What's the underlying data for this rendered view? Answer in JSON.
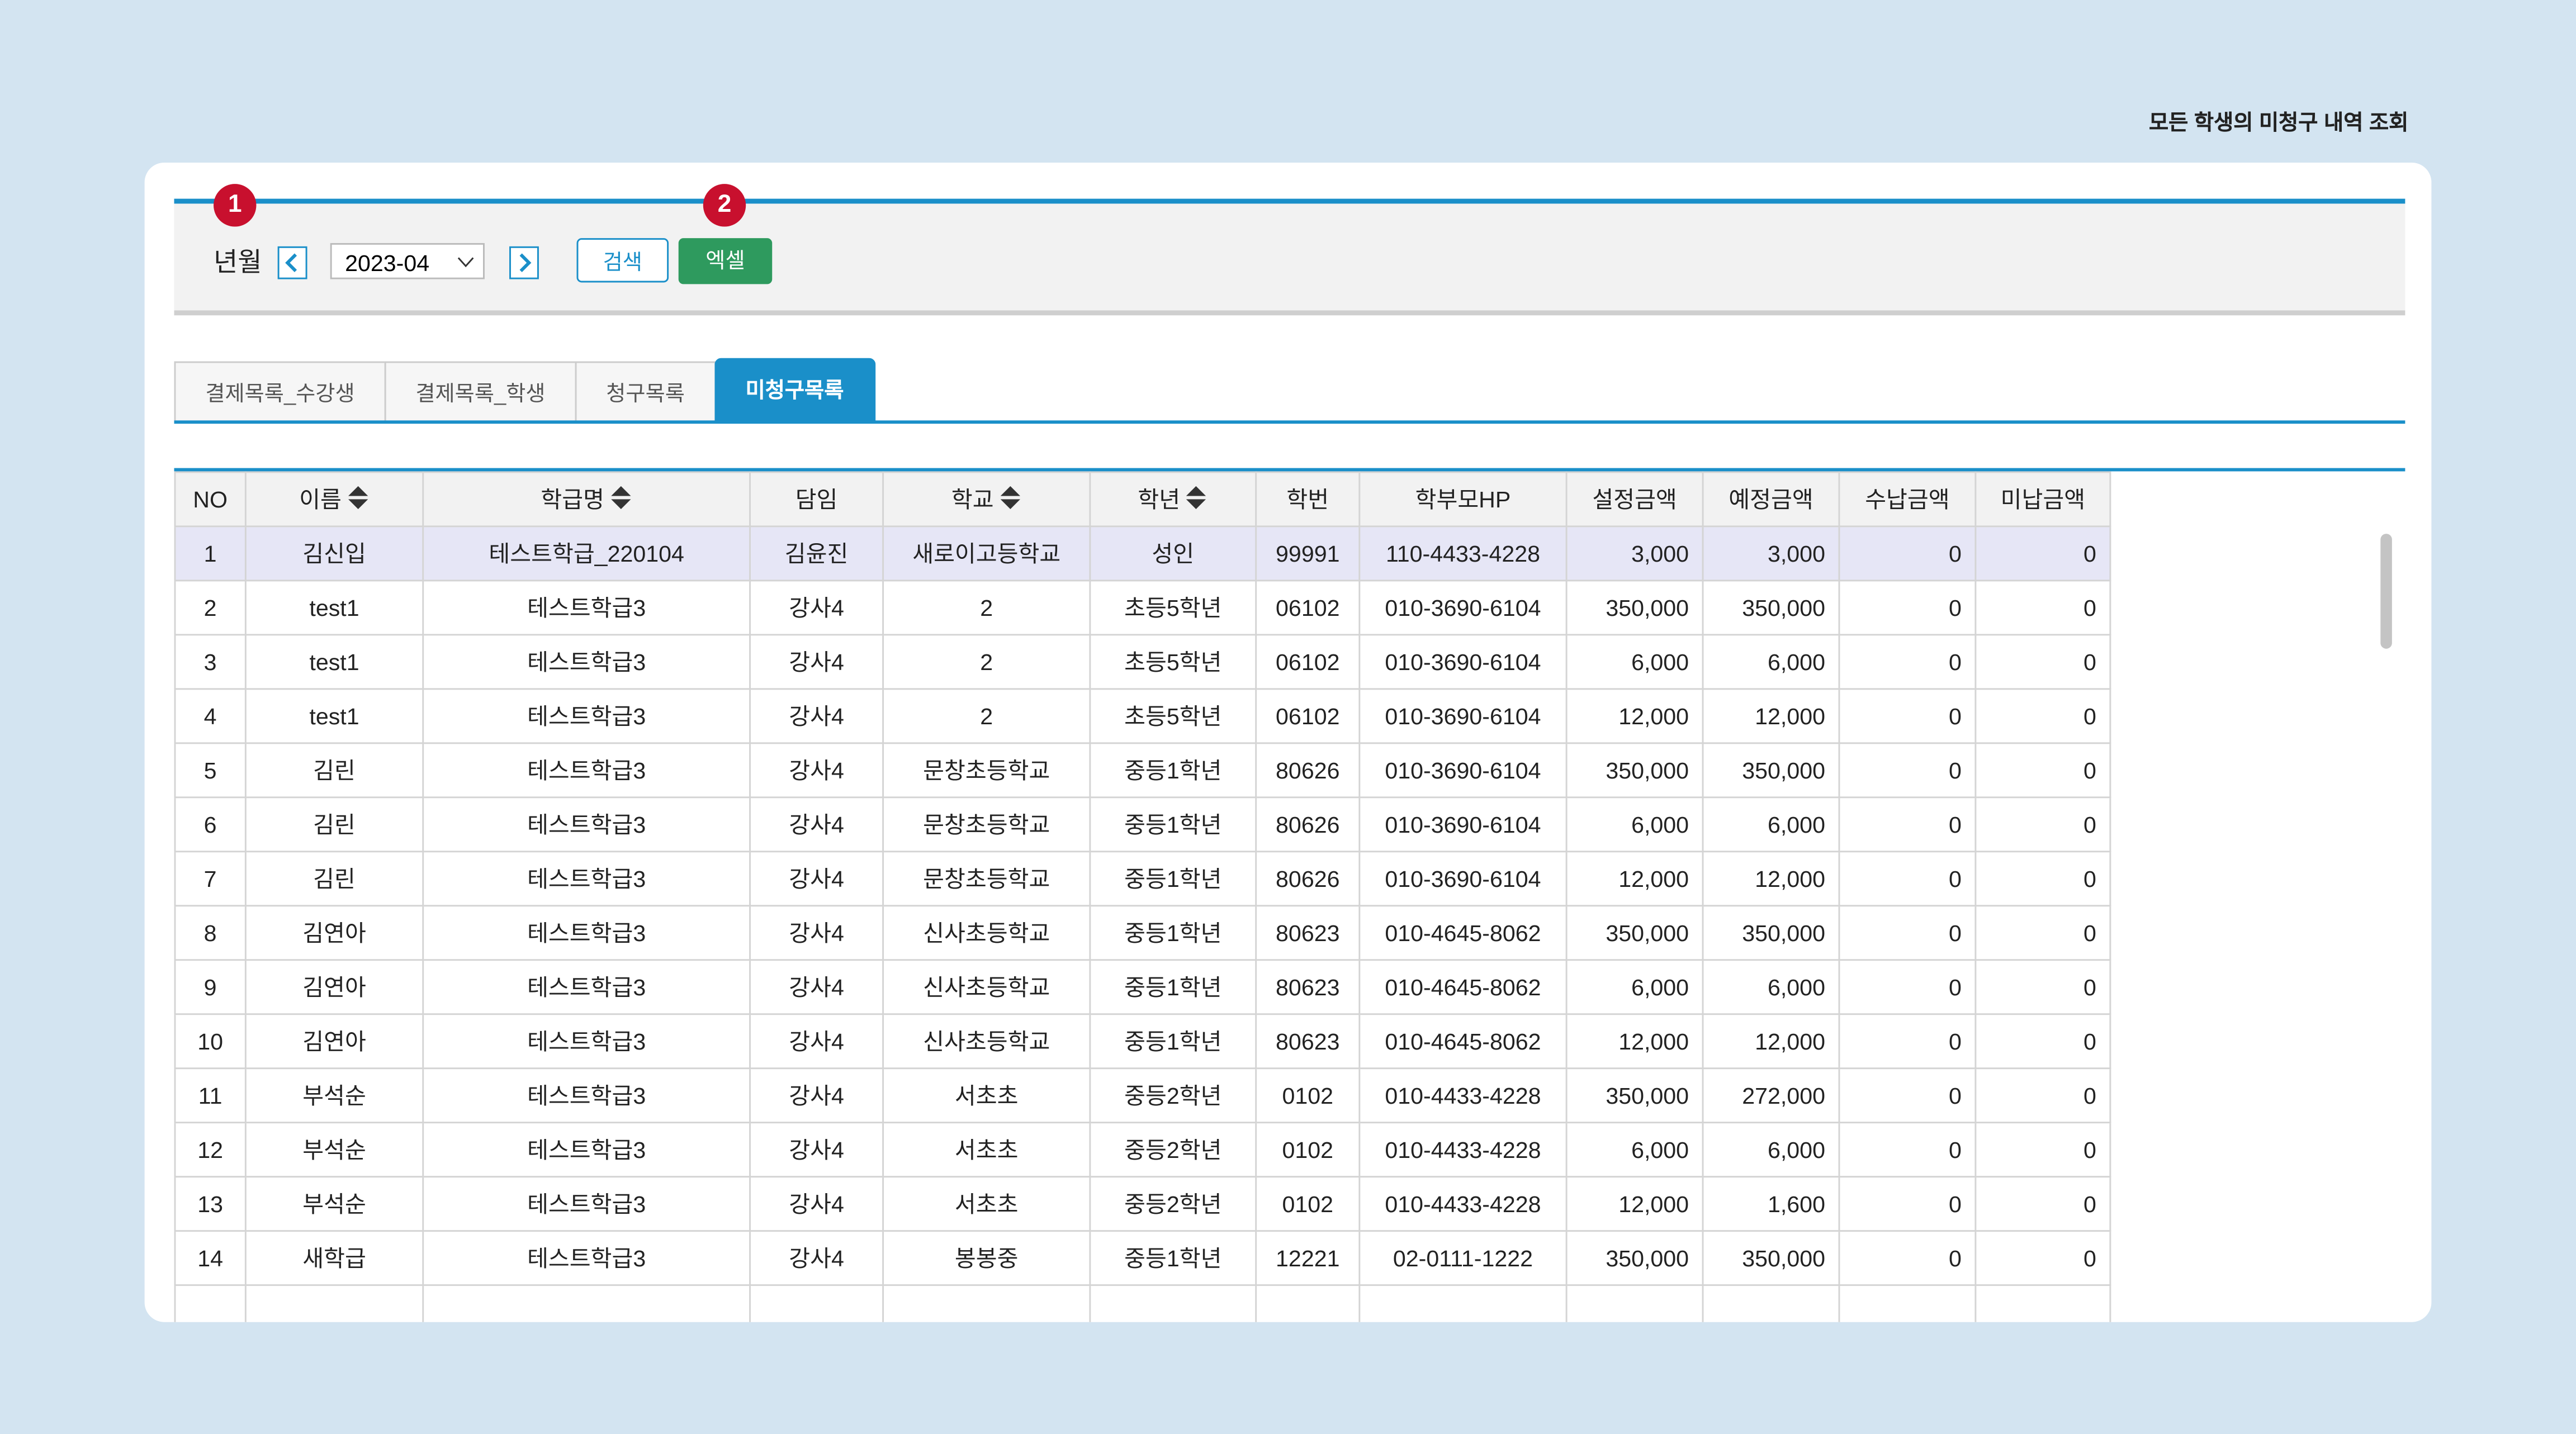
{
  "header": {
    "title": "모든 학생의 미청구 내역 조회"
  },
  "markers": [
    "1",
    "2"
  ],
  "filter": {
    "label": "년월",
    "month": "2023-04",
    "search": "검색",
    "excel": "엑셀"
  },
  "tabs": {
    "items": [
      "결제목록_수강생",
      "결제목록_학생",
      "청구목록",
      "미청구목록"
    ],
    "active": 3
  },
  "table": {
    "columns": [
      {
        "label": "NO",
        "sortable": false
      },
      {
        "label": "이름",
        "sortable": true
      },
      {
        "label": "학급명",
        "sortable": true
      },
      {
        "label": "담임",
        "sortable": false
      },
      {
        "label": "학교",
        "sortable": true
      },
      {
        "label": "학년",
        "sortable": true
      },
      {
        "label": "학번",
        "sortable": false
      },
      {
        "label": "학부모HP",
        "sortable": false
      },
      {
        "label": "설정금액",
        "sortable": false
      },
      {
        "label": "예정금액",
        "sortable": false
      },
      {
        "label": "수납금액",
        "sortable": false
      },
      {
        "label": "미납금액",
        "sortable": false
      }
    ],
    "selected_row": 0,
    "rows": [
      [
        "1",
        "김신입",
        "테스트학급_220104",
        "김윤진",
        "새로이고등학교",
        "성인",
        "99991",
        "110-4433-4228",
        "3,000",
        "3,000",
        "0",
        "0"
      ],
      [
        "2",
        "test1",
        "테스트학급3",
        "강사4",
        "2",
        "초등5학년",
        "06102",
        "010-3690-6104",
        "350,000",
        "350,000",
        "0",
        "0"
      ],
      [
        "3",
        "test1",
        "테스트학급3",
        "강사4",
        "2",
        "초등5학년",
        "06102",
        "010-3690-6104",
        "6,000",
        "6,000",
        "0",
        "0"
      ],
      [
        "4",
        "test1",
        "테스트학급3",
        "강사4",
        "2",
        "초등5학년",
        "06102",
        "010-3690-6104",
        "12,000",
        "12,000",
        "0",
        "0"
      ],
      [
        "5",
        "김린",
        "테스트학급3",
        "강사4",
        "문창초등학교",
        "중등1학년",
        "80626",
        "010-3690-6104",
        "350,000",
        "350,000",
        "0",
        "0"
      ],
      [
        "6",
        "김린",
        "테스트학급3",
        "강사4",
        "문창초등학교",
        "중등1학년",
        "80626",
        "010-3690-6104",
        "6,000",
        "6,000",
        "0",
        "0"
      ],
      [
        "7",
        "김린",
        "테스트학급3",
        "강사4",
        "문창초등학교",
        "중등1학년",
        "80626",
        "010-3690-6104",
        "12,000",
        "12,000",
        "0",
        "0"
      ],
      [
        "8",
        "김연아",
        "테스트학급3",
        "강사4",
        "신사초등학교",
        "중등1학년",
        "80623",
        "010-4645-8062",
        "350,000",
        "350,000",
        "0",
        "0"
      ],
      [
        "9",
        "김연아",
        "테스트학급3",
        "강사4",
        "신사초등학교",
        "중등1학년",
        "80623",
        "010-4645-8062",
        "6,000",
        "6,000",
        "0",
        "0"
      ],
      [
        "10",
        "김연아",
        "테스트학급3",
        "강사4",
        "신사초등학교",
        "중등1학년",
        "80623",
        "010-4645-8062",
        "12,000",
        "12,000",
        "0",
        "0"
      ],
      [
        "11",
        "부석순",
        "테스트학급3",
        "강사4",
        "서초초",
        "중등2학년",
        "0102",
        "010-4433-4228",
        "350,000",
        "272,000",
        "0",
        "0"
      ],
      [
        "12",
        "부석순",
        "테스트학급3",
        "강사4",
        "서초초",
        "중등2학년",
        "0102",
        "010-4433-4228",
        "6,000",
        "6,000",
        "0",
        "0"
      ],
      [
        "13",
        "부석순",
        "테스트학급3",
        "강사4",
        "서초초",
        "중등2학년",
        "0102",
        "010-4433-4228",
        "12,000",
        "1,600",
        "0",
        "0"
      ],
      [
        "14",
        "새학급",
        "테스트학급3",
        "강사4",
        "봉봉중",
        "중등1학년",
        "12221",
        "02-0111-1222",
        "350,000",
        "350,000",
        "0",
        "0"
      ]
    ]
  }
}
